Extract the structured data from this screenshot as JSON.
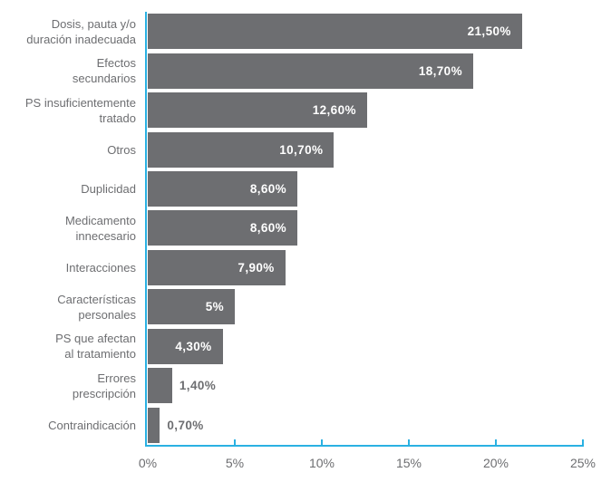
{
  "chart_data": {
    "type": "bar",
    "orientation": "horizontal",
    "title": "",
    "xlabel": "",
    "ylabel": "",
    "xlim": [
      0,
      25
    ],
    "grid": false,
    "legend": false,
    "x_ticks": [
      {
        "value": 0,
        "label": "0%"
      },
      {
        "value": 5,
        "label": "5%"
      },
      {
        "value": 10,
        "label": "10%"
      },
      {
        "value": 15,
        "label": "15%"
      },
      {
        "value": 20,
        "label": "20%"
      },
      {
        "value": 25,
        "label": "25%"
      }
    ],
    "items": [
      {
        "label": "Dosis, pauta y/o\nduración inadecuada",
        "value": 21.5,
        "value_label": "21,50%"
      },
      {
        "label": "Efectos\nsecundarios",
        "value": 18.7,
        "value_label": "18,70%"
      },
      {
        "label": "PS insuficientemente\ntratado",
        "value": 12.6,
        "value_label": "12,60%"
      },
      {
        "label": "Otros",
        "value": 10.7,
        "value_label": "10,70%"
      },
      {
        "label": "Duplicidad",
        "value": 8.6,
        "value_label": "8,60%"
      },
      {
        "label": "Medicamento\ninnecesario",
        "value": 8.6,
        "value_label": "8,60%"
      },
      {
        "label": "Interacciones",
        "value": 7.9,
        "value_label": "7,90%"
      },
      {
        "label": "Características\npersonales",
        "value": 5,
        "value_label": "5%"
      },
      {
        "label": "PS que afectan\nal tratamiento",
        "value": 4.3,
        "value_label": "4,30%"
      },
      {
        "label": "Errores\nprescripción",
        "value": 1.4,
        "value_label": "1,40%"
      },
      {
        "label": "Contraindicación",
        "value": 0.7,
        "value_label": "0,70%"
      }
    ],
    "colors": {
      "bar": "#6D6E71",
      "axis": "#2AB1E2",
      "value_label_inside": "#FFFFFF",
      "value_label_outside": "#6D6E71",
      "category_label": "#6D6E71",
      "tick_label": "#6D6E71",
      "background": "#FFFFFF"
    }
  }
}
